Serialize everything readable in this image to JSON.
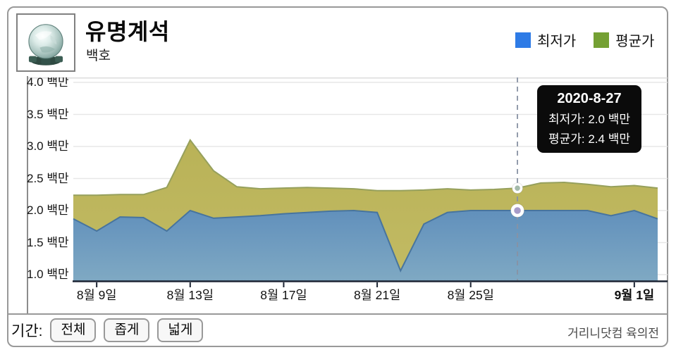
{
  "header": {
    "title": "유명계석",
    "subtitle": "백호",
    "icon": "gem-stone-icon",
    "legend": [
      {
        "label": "최저가",
        "color": "#2e7be6"
      },
      {
        "label": "평균가",
        "color": "#74a033"
      }
    ]
  },
  "chart_data": {
    "type": "area",
    "unit": "백만",
    "ylim": [
      1.0,
      4.0
    ],
    "ytick_step": 0.5,
    "ytick_suffix": " 백만",
    "grid": true,
    "legend_position": "top-right",
    "x_dates": [
      "2020-8-8",
      "2020-8-9",
      "2020-8-10",
      "2020-8-11",
      "2020-8-12",
      "2020-8-13",
      "2020-8-14",
      "2020-8-15",
      "2020-8-16",
      "2020-8-17",
      "2020-8-18",
      "2020-8-19",
      "2020-8-20",
      "2020-8-21",
      "2020-8-22",
      "2020-8-23",
      "2020-8-24",
      "2020-8-25",
      "2020-8-26",
      "2020-8-27",
      "2020-8-28",
      "2020-8-29",
      "2020-8-30",
      "2020-8-31",
      "2020-9-1",
      "2020-9-2"
    ],
    "series": [
      {
        "name": "최저가",
        "values": [
          1.87,
          1.68,
          1.9,
          1.89,
          1.68,
          2.0,
          1.88,
          1.9,
          1.92,
          1.95,
          1.97,
          1.99,
          2.0,
          1.97,
          1.06,
          1.79,
          1.97,
          2.0,
          2.0,
          2.0,
          2.0,
          2.0,
          2.0,
          1.92,
          2.0,
          1.87
        ]
      },
      {
        "name": "평균가",
        "values": [
          2.24,
          2.24,
          2.25,
          2.25,
          2.36,
          3.1,
          2.62,
          2.37,
          2.34,
          2.35,
          2.36,
          2.35,
          2.34,
          2.31,
          2.31,
          2.32,
          2.34,
          2.32,
          2.33,
          2.35,
          2.43,
          2.44,
          2.41,
          2.37,
          2.39,
          2.35
        ]
      }
    ],
    "xticks": [
      {
        "index": 1,
        "label": "8월 9일"
      },
      {
        "index": 5,
        "label": "8월 13일"
      },
      {
        "index": 9,
        "label": "8월 17일"
      },
      {
        "index": 13,
        "label": "8월 21일"
      },
      {
        "index": 17,
        "label": "8월 25일"
      },
      {
        "index": 24,
        "label": "9월 1일",
        "bold": true
      }
    ],
    "hover": {
      "index": 19,
      "title": "2020-8-27",
      "line1": "최저가: 2.0 백만",
      "line2": "평균가: 2.4 백만"
    }
  },
  "colors": {
    "legend_min": "#2e7be6",
    "legend_avg": "#74a033",
    "min_fill_top": "#6190bc",
    "min_fill_bottom": "#7fa9c3",
    "min_stroke": "#47749e",
    "avg_fill_top": "#b9b257",
    "avg_fill_bottom": "#c2bb64",
    "avg_stroke": "#96a05c",
    "axis": "#1c2433",
    "grid": "#e7e7e7",
    "plot_top_border": "#dcdcdc",
    "dash_line": "#8892a4",
    "dot_avg_inner": "#a4baab",
    "dot_min_inner": "#a79bc8",
    "tooltip_bg": "#0b0b0b"
  },
  "footer": {
    "period_label": "기간:",
    "buttons": [
      "전체",
      "좁게",
      "넓게"
    ],
    "credit": "거리니닷컴 육의전"
  }
}
